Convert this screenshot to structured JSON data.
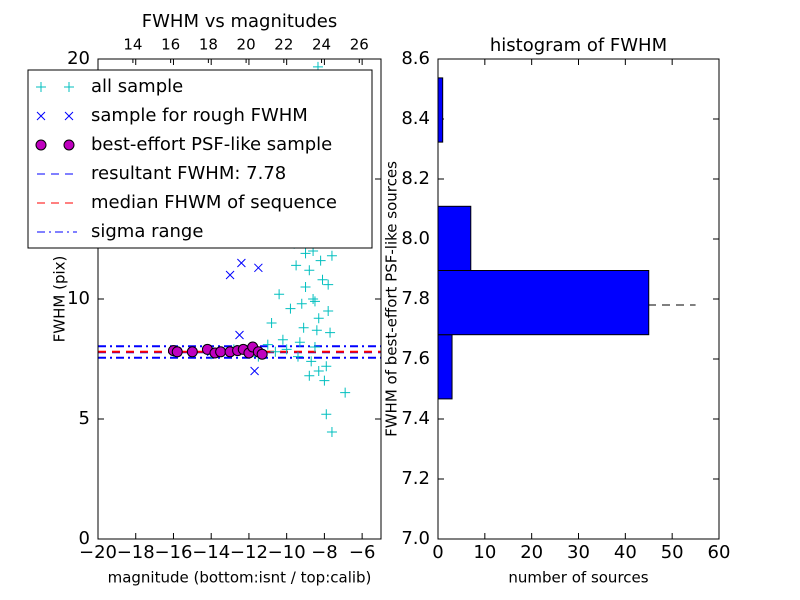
{
  "chart_data": [
    {
      "type": "scatter",
      "title": "FWHM vs magnitudes",
      "xlabel": "magnitude (bottom:isnt / top:calib)",
      "ylabel": "FWHM (pix)",
      "xlim": [
        -20,
        -5
      ],
      "xticks": [
        {
          "value": -20,
          "label": "−20"
        },
        {
          "value": -18,
          "label": "−18"
        },
        {
          "value": -16,
          "label": "−16"
        },
        {
          "value": -14,
          "label": "−14"
        },
        {
          "value": -12,
          "label": "−12"
        },
        {
          "value": -10,
          "label": "−10"
        },
        {
          "value": -8,
          "label": "−8"
        },
        {
          "value": -6,
          "label": "−6"
        }
      ],
      "x2lim": [
        12.15,
        27.15
      ],
      "x2ticks": [
        14,
        16,
        18,
        20,
        22,
        24,
        26
      ],
      "ylim": [
        0,
        20
      ],
      "yticks": [
        0,
        5,
        10,
        15,
        20
      ],
      "legend": "upper left",
      "series": [
        {
          "name": "all sample",
          "color": "#00bfbf",
          "marker": "+",
          "x": [
            -8.34,
            -9.5,
            -6.9,
            -7.6,
            -7.9,
            -8.0,
            -8.2,
            -8.4,
            -8.6,
            -8.8,
            -9.0,
            -9.2,
            -8.1,
            -7.8,
            -7.7,
            -8.3,
            -8.5,
            -8.7,
            -9.1,
            -9.4,
            -9.8,
            -10.2,
            -10.6,
            -11.0,
            -10.4,
            -9.6,
            -8.9,
            -8.2,
            -7.9,
            -8.0,
            -8.6,
            -8.4,
            -7.6,
            -8.1,
            -9.3,
            -10.0,
            -8.8,
            -8.5,
            -7.8,
            -8.0,
            -8.3,
            -9.0,
            -12.0,
            -13.5,
            -15.0,
            -14.0,
            -11.5,
            -16.0,
            -12.8,
            -10.8
          ],
          "values": [
            19.67,
            11.4,
            6.1,
            4.46,
            5.2,
            13.5,
            12.8,
            14.2,
            12.0,
            11.2,
            10.5,
            9.8,
            10.8,
            9.5,
            8.6,
            9.2,
            8.0,
            7.4,
            8.8,
            7.6,
            9.6,
            8.3,
            7.8,
            8.1,
            10.2,
            12.3,
            13.0,
            11.6,
            7.2,
            6.6,
            10.0,
            8.7,
            11.8,
            12.5,
            8.2,
            7.9,
            6.8,
            9.9,
            10.6,
            14.8,
            7.0,
            11.9,
            7.9,
            7.8,
            7.8,
            7.7,
            7.6,
            7.8,
            7.9,
            9.0
          ]
        },
        {
          "name": "sample for rough FWHM",
          "color": "#0000ff",
          "marker": "x",
          "x": [
            -12.5,
            -11.7,
            -13.0,
            -11.5,
            -12.4,
            -14.0,
            -15.8
          ],
          "values": [
            8.5,
            7.0,
            11.0,
            11.3,
            11.5,
            7.8,
            7.8
          ]
        },
        {
          "name": "best-effort PSF-like sample",
          "color": "#bf00bf",
          "marker": "o",
          "x": [
            -16.0,
            -15.8,
            -15.0,
            -14.2,
            -13.8,
            -13.5,
            -13.0,
            -12.6,
            -12.3,
            -12.0,
            -11.8,
            -11.5,
            -11.3
          ],
          "values": [
            7.85,
            7.8,
            7.8,
            7.9,
            7.75,
            7.8,
            7.8,
            7.85,
            7.9,
            7.75,
            8.0,
            7.8,
            7.7
          ]
        }
      ],
      "lines": [
        {
          "name": "resultant FWHM: 7.78",
          "color": "#0000ff",
          "linestyle": "dashed",
          "values": [
            7.78
          ]
        },
        {
          "name": "median FHWM of sequence",
          "color": "#ff0000",
          "linestyle": "dashed",
          "values": [
            7.8
          ]
        },
        {
          "name": "sigma range",
          "color": "#0000ff",
          "linestyle": "dashdot",
          "values": [
            8.03,
            7.55
          ]
        }
      ]
    },
    {
      "type": "hist",
      "title": "histogram of FWHM",
      "xlabel": "number of sources",
      "ylabel": "FWHM of best-effort PSF-like sources",
      "orientation": "horizontal",
      "color": "#0000ff",
      "bins": [
        7.467,
        7.681,
        7.895,
        8.109,
        8.323,
        8.537
      ],
      "counts": [
        3,
        45,
        7,
        0,
        1
      ],
      "xlim": [
        0,
        60
      ],
      "xticks": [
        0,
        10,
        20,
        30,
        40,
        50,
        60
      ],
      "ylim": [
        7.0,
        8.6
      ],
      "yticks": [
        {
          "value": 7.0,
          "label": "7.0"
        },
        7.2,
        7.4,
        7.6,
        7.8,
        {
          "value": 8.0,
          "label": "8.0"
        },
        8.2,
        8.4,
        8.6
      ],
      "reference_line": {
        "value": 7.78,
        "extent": [
          0,
          55
        ],
        "color": "#000000",
        "linestyle": "dashed"
      }
    }
  ]
}
